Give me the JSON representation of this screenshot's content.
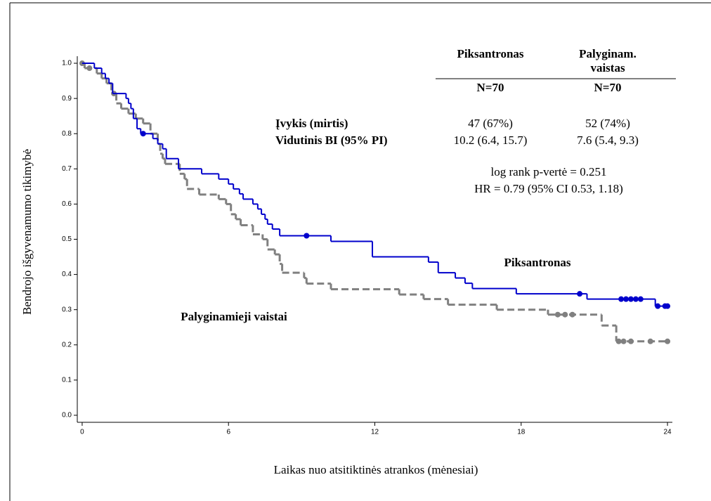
{
  "chart_data": {
    "type": "kaplan-meier",
    "x_label": "Laikas nuo atsitiktinės atrankos (mėnesiai)",
    "y_label": "Bendrojo išgyvenamumo tikimybė",
    "xlim": [
      -0.2,
      24.2
    ],
    "ylim": [
      -0.02,
      1.02
    ],
    "xticks": [
      0,
      6,
      12,
      18,
      24
    ],
    "yticks": [
      {
        "value": 0,
        "label": "0.0"
      },
      {
        "value": 0.1,
        "label": "0.1"
      },
      {
        "value": 0.2,
        "label": "0.2"
      },
      {
        "value": 0.3,
        "label": "0.3"
      },
      {
        "value": 0.4,
        "label": "0.4"
      },
      {
        "value": 0.5,
        "label": "0.5"
      },
      {
        "value": 0.6,
        "label": "0.6"
      },
      {
        "value": 0.7,
        "label": "0.7"
      },
      {
        "value": 0.8,
        "label": "0.8"
      },
      {
        "value": 0.9,
        "label": "0.9"
      },
      {
        "value": 1,
        "label": "1.0"
      }
    ],
    "series": [
      {
        "name": "Piksantronas",
        "color": "#0000cc",
        "dashed": false,
        "x": [
          0,
          0.5,
          0.8,
          0.95,
          1.1,
          1.25,
          1.8,
          1.9,
          2.0,
          2.1,
          2.25,
          2.4,
          2.9,
          3.1,
          3.3,
          3.45,
          3.95,
          4.9,
          5.6,
          6.0,
          6.2,
          6.45,
          6.6,
          7.0,
          7.2,
          7.35,
          7.5,
          7.6,
          7.8,
          8.1,
          10.2,
          11.9,
          14.2,
          14.6,
          15.3,
          15.7,
          16.0,
          17.8,
          20.7,
          23.5,
          24
        ],
        "values": [
          1.0,
          0.986,
          0.971,
          0.957,
          0.943,
          0.914,
          0.9,
          0.886,
          0.871,
          0.843,
          0.814,
          0.8,
          0.786,
          0.771,
          0.757,
          0.729,
          0.7,
          0.686,
          0.671,
          0.657,
          0.643,
          0.629,
          0.614,
          0.6,
          0.586,
          0.571,
          0.557,
          0.543,
          0.529,
          0.51,
          0.494,
          0.45,
          0.435,
          0.405,
          0.39,
          0.375,
          0.36,
          0.345,
          0.33,
          0.31,
          0.31
        ],
        "censor_x": [
          2.5,
          9.2,
          20.4,
          22.1,
          22.3,
          22.5,
          22.7,
          22.9,
          23.6,
          23.9,
          24.0
        ],
        "censor_values": [
          0.8,
          0.51,
          0.345,
          0.33,
          0.33,
          0.33,
          0.33,
          0.33,
          0.31,
          0.31,
          0.31
        ]
      },
      {
        "name": "Palyginamieji vaistai",
        "color": "#808080",
        "dashed": true,
        "x": [
          0,
          0.1,
          0.6,
          0.8,
          1.0,
          1.2,
          1.4,
          1.6,
          1.9,
          2.2,
          2.5,
          2.8,
          3.1,
          3.2,
          3.3,
          3.4,
          4.0,
          4.2,
          4.3,
          4.8,
          5.6,
          5.9,
          6.1,
          6.3,
          6.5,
          7.0,
          7.4,
          7.6,
          7.9,
          8.1,
          8.2,
          9.1,
          9.2,
          10.2,
          13.0,
          14.0,
          15.0,
          17.0,
          19.1,
          21.3,
          21.9,
          24
        ],
        "values": [
          1.0,
          0.986,
          0.971,
          0.957,
          0.943,
          0.914,
          0.886,
          0.871,
          0.857,
          0.843,
          0.829,
          0.8,
          0.771,
          0.743,
          0.729,
          0.714,
          0.686,
          0.671,
          0.643,
          0.627,
          0.614,
          0.6,
          0.571,
          0.557,
          0.54,
          0.514,
          0.5,
          0.471,
          0.457,
          0.43,
          0.405,
          0.39,
          0.374,
          0.358,
          0.343,
          0.33,
          0.314,
          0.3,
          0.286,
          0.255,
          0.21,
          0.21
        ],
        "censor_x": [
          0,
          0.3,
          1.3,
          19.5,
          19.8,
          20.1,
          22.0,
          22.2,
          22.5,
          23.3,
          24.0
        ],
        "censor_values": [
          1.0,
          0.986,
          0.914,
          0.286,
          0.286,
          0.286,
          0.21,
          0.21,
          0.21,
          0.21,
          0.21
        ]
      }
    ],
    "table": {
      "headers": [
        "Piksantronas",
        [
          "Palyginam.",
          "vaistas"
        ]
      ],
      "n": [
        "N=70",
        "N=70"
      ],
      "rows": [
        {
          "label": "Įvykis (mirtis)",
          "cells": [
            "47 (67%)",
            "52 (74%)"
          ]
        },
        {
          "label": "Vidutinis BI (95% PI)",
          "cells": [
            "10.2 (6.4, 15.7)",
            "7.6 (5.4, 9.3)"
          ]
        }
      ],
      "notes": [
        "log rank p-vertė = 0.251",
        "HR = 0.79 (95% CI 0.53, 1.18)"
      ]
    },
    "annotations": [
      "Piksantronas",
      "Palyginamieji vaistai"
    ]
  }
}
